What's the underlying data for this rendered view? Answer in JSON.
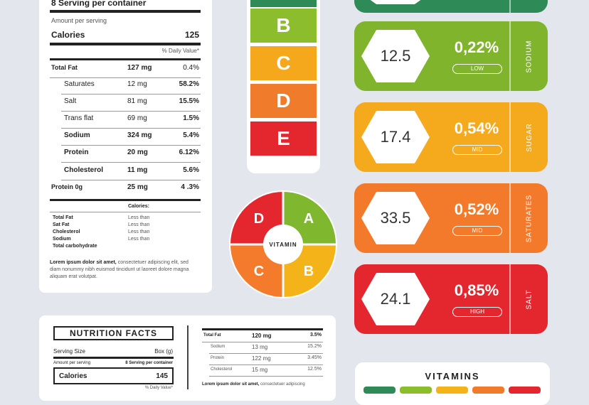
{
  "label1": {
    "serving": "8 Serving per container",
    "amount": "Amount per serving",
    "calories_label": "Calories",
    "calories_value": "125",
    "dv_header": "% Daily Value*",
    "rows": [
      {
        "name": "Total Fat",
        "amount": "127 mg",
        "pct": "0.4%"
      },
      {
        "name": "Saturates",
        "amount": "12 mg",
        "pct": "58.2%"
      },
      {
        "name": "Salt",
        "amount": "81 mg",
        "pct": "15.5%"
      },
      {
        "name": "Trans flat",
        "amount": "69 mg",
        "pct": "1.5%"
      },
      {
        "name": "Sodium",
        "amount": "324 mg",
        "pct": "5.4%"
      },
      {
        "name": "Protein",
        "amount": "20 mg",
        "pct": "6.12%"
      },
      {
        "name": "Cholesterol",
        "amount": "11 mg",
        "pct": "5.6%"
      },
      {
        "name": "Protein 0g",
        "amount": "25 mg",
        "pct": "4 .3%"
      }
    ],
    "calories_small": "Calories:",
    "small_rows": [
      {
        "name": "Total Fat",
        "value": "Less than"
      },
      {
        "name": "Sat Fat",
        "value": "Less than"
      },
      {
        "name": "Cholesterol",
        "value": "Less than"
      },
      {
        "name": "Sodium",
        "value": "Less than"
      },
      {
        "name": "Total carbohydrate",
        "value": ""
      }
    ],
    "lorem_bold": "Lorem ipsum dolor sit amet,",
    "lorem_rest": " consectetuer adipiscing elit, sed diam nonummy nibh euismod tincidunt ut laoreet dolore magna aliquam erat volutpat."
  },
  "grades": [
    {
      "letter": "B",
      "color": "#8cbd2c"
    },
    {
      "letter": "C",
      "color": "#f5a81c"
    },
    {
      "letter": "D",
      "color": "#f07b2a"
    },
    {
      "letter": "E",
      "color": "#e4262f"
    }
  ],
  "wheel": {
    "center": "VITAMIN",
    "segments": [
      {
        "letter": "A",
        "color": "#7fb72f"
      },
      {
        "letter": "B",
        "color": "#f5b31a"
      },
      {
        "letter": "C",
        "color": "#f47a2c"
      },
      {
        "letter": "D",
        "color": "#e4262f"
      }
    ]
  },
  "nutrients": [
    {
      "value": "12.5",
      "pct": "0,22%",
      "level": "LOW",
      "name": "SODIUM",
      "color": "#7fb42c"
    },
    {
      "value": "17.4",
      "pct": "0,54%",
      "level": "MID",
      "name": "SUGAR",
      "color": "#f5a91c"
    },
    {
      "value": "33.5",
      "pct": "0,52%",
      "level": "MID",
      "name": "SATURATES",
      "color": "#f37a2a"
    },
    {
      "value": "24.1",
      "pct": "0,85%",
      "level": "HIGH",
      "name": "SALT",
      "color": "#e4262f"
    }
  ],
  "top_pill_color": "#2e8b57",
  "label2": {
    "title": "NUTRITION FACTS",
    "serving_size_label": "Serving Size",
    "serving_size_value": "Box (g)",
    "amount_label": "Amount per serving",
    "amount_value": "8 Serving per container",
    "calories_label": "Calories",
    "calories_value": "145",
    "dv_header": "% Daily Value*",
    "rows": [
      {
        "name": "Total Fat",
        "amount": "120 mg",
        "pct": "3.5%"
      },
      {
        "name": "Sodium",
        "amount": "13 mg",
        "pct": "15.2%"
      },
      {
        "name": "Protein",
        "amount": "122 mg",
        "pct": "3.45%"
      },
      {
        "name": "Cholesterol",
        "amount": "15 mg",
        "pct": "12.5%"
      }
    ],
    "lorem_bold": "Lorem ipsum dolor sit amet,",
    "lorem_rest": " consectetuer adipiscing"
  },
  "vitamins": {
    "title": "VITAMINS",
    "bar_colors": [
      "#2e8b57",
      "#8cbd2c",
      "#f5b31a",
      "#f07b2a",
      "#e4262f"
    ]
  }
}
